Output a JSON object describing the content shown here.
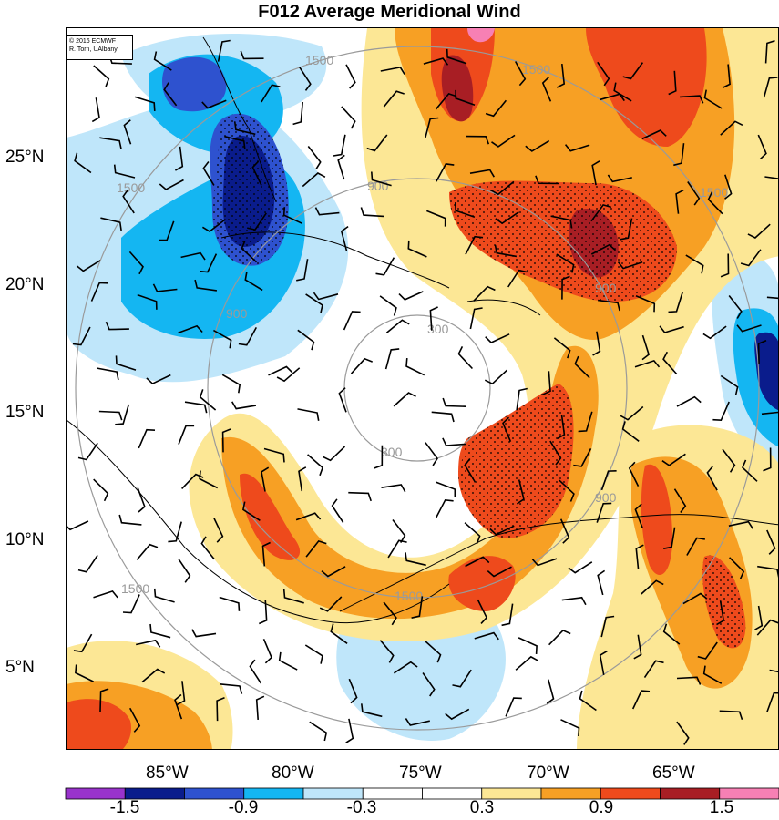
{
  "title": "F012 Average Meridional Wind",
  "credit": {
    "line1": "© 2016 ECMWF",
    "line2": "R. Torn, UAlbany"
  },
  "lat_labels": [
    "25°N",
    "20°N",
    "15°N",
    "10°N",
    "5°N"
  ],
  "lon_labels": [
    "85°W",
    "80°W",
    "75°W",
    "70°W",
    "65°W"
  ],
  "range_ring_labels": [
    "300",
    "300",
    "900",
    "900",
    "900",
    "900",
    "1500",
    "1500",
    "1500",
    "1500",
    "1500",
    "1500"
  ],
  "colorbar": {
    "labels": [
      "-1.5",
      "-0.9",
      "-0.3",
      "0.3",
      "0.9",
      "1.5"
    ],
    "colors": [
      "#9933cc",
      "#0a1c8c",
      "#2e52cf",
      "#14b6f2",
      "#bfe6fa",
      "#ffffff",
      "#ffffff",
      "#fce795",
      "#f7a024",
      "#ee4a1c",
      "#a81e24",
      "#f780b4"
    ]
  },
  "colors": {
    "positive_strong": "#ee4a1c",
    "positive_mid": "#f7a024",
    "positive_weak": "#fce795",
    "negative_weak": "#bfe6fa",
    "negative_mid": "#14b6f2",
    "negative_strong": "#2e52cf",
    "ring": "#9a9a9a"
  }
}
